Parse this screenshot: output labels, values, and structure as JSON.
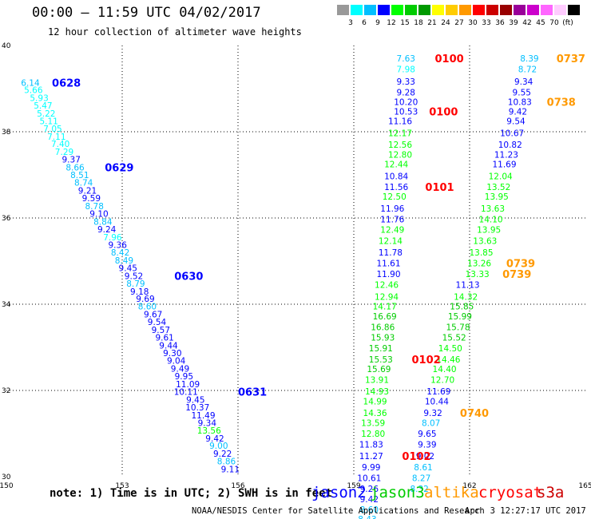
{
  "title": "00:00 — 11:59 UTC 04/02/2017",
  "subtitle": "12 hour collection of altimeter wave heights",
  "note": "note: 1) Time is in UTC; 2) SWH is in feet",
  "credit": "NOAA/NESDIS Center for Satellite Applications and Research",
  "timestamp": "Apr  3 12:27:17 UTC 2017",
  "colors": {
    "grid": "#000000"
  },
  "scale": {
    "colors": [
      "#999999",
      "#00ffff",
      "#00bfff",
      "#0000ff",
      "#00ff00",
      "#00cc00",
      "#009900",
      "#ffff00",
      "#ffcc00",
      "#ff9900",
      "#ff0000",
      "#cc0000",
      "#990000",
      "#990099",
      "#cc00cc",
      "#ff66ff",
      "#ffccff",
      "#000000"
    ],
    "labels": [
      "3",
      "6",
      "9",
      "12",
      "15",
      "18",
      "21",
      "24",
      "27",
      "30",
      "33",
      "36",
      "39",
      "42",
      "45",
      "70",
      "(ft)"
    ]
  },
  "legend": [
    {
      "name": "jason2",
      "color": "#0000ff"
    },
    {
      "name": "jason3",
      "color": "#00cc00"
    },
    {
      "name": "altika",
      "color": "#ff9900"
    },
    {
      "name": "cryosat",
      "color": "#ff0000"
    },
    {
      "name": "s3a",
      "color": "#cc0000"
    }
  ],
  "chart_data": {
    "type": "scatter",
    "xlim": [
      150,
      165
    ],
    "ylim": [
      30,
      40
    ],
    "xticks": [
      150,
      153,
      156,
      159,
      162,
      165
    ],
    "yticks": [
      30,
      32,
      34,
      36,
      38,
      40
    ],
    "grid": true,
    "points": [
      {
        "x": 150.62,
        "y": 39.14,
        "v": "6.14",
        "c": "#00bfff"
      },
      {
        "x": 150.7,
        "y": 38.97,
        "v": "5.66",
        "c": "#00ffff"
      },
      {
        "x": 150.85,
        "y": 38.79,
        "v": "5.93",
        "c": "#00ffff"
      },
      {
        "x": 150.95,
        "y": 38.61,
        "v": "5.47",
        "c": "#00ffff"
      },
      {
        "x": 151.03,
        "y": 38.43,
        "v": "5.22",
        "c": "#00ffff"
      },
      {
        "x": 151.1,
        "y": 38.25,
        "v": "5.11",
        "c": "#00ffff"
      },
      {
        "x": 151.2,
        "y": 38.07,
        "v": "7.05",
        "c": "#00ffff"
      },
      {
        "x": 151.3,
        "y": 37.89,
        "v": "7.11",
        "c": "#00ffff"
      },
      {
        "x": 151.4,
        "y": 37.72,
        "v": "7.40",
        "c": "#00ffff"
      },
      {
        "x": 151.5,
        "y": 37.54,
        "v": "7.29",
        "c": "#00ffff"
      },
      {
        "x": 151.68,
        "y": 37.36,
        "v": "9.37",
        "c": "#0000ff"
      },
      {
        "x": 151.78,
        "y": 37.18,
        "v": "8.66",
        "c": "#00bfff"
      },
      {
        "x": 151.9,
        "y": 37.0,
        "v": "8.51",
        "c": "#00bfff"
      },
      {
        "x": 152.0,
        "y": 36.82,
        "v": "8.74",
        "c": "#00bfff"
      },
      {
        "x": 152.1,
        "y": 36.64,
        "v": "9.21",
        "c": "#0000ff"
      },
      {
        "x": 152.2,
        "y": 36.46,
        "v": "9.59",
        "c": "#0000ff"
      },
      {
        "x": 152.28,
        "y": 36.28,
        "v": "8.78",
        "c": "#00bfff"
      },
      {
        "x": 152.4,
        "y": 36.1,
        "v": "9.10",
        "c": "#0000ff"
      },
      {
        "x": 152.5,
        "y": 35.92,
        "v": "8.84",
        "c": "#00bfff"
      },
      {
        "x": 152.6,
        "y": 35.74,
        "v": "9.24",
        "c": "#0000ff"
      },
      {
        "x": 152.75,
        "y": 35.56,
        "v": "7.96",
        "c": "#00ffff"
      },
      {
        "x": 152.88,
        "y": 35.38,
        "v": "9.36",
        "c": "#0000ff"
      },
      {
        "x": 152.95,
        "y": 35.2,
        "v": "8.42",
        "c": "#00bfff"
      },
      {
        "x": 153.05,
        "y": 35.02,
        "v": "8.49",
        "c": "#00bfff"
      },
      {
        "x": 153.15,
        "y": 34.84,
        "v": "9.45",
        "c": "#0000ff"
      },
      {
        "x": 153.3,
        "y": 34.66,
        "v": "9.52",
        "c": "#0000ff"
      },
      {
        "x": 153.35,
        "y": 34.48,
        "v": "8.79",
        "c": "#00bfff"
      },
      {
        "x": 153.45,
        "y": 34.3,
        "v": "9.18",
        "c": "#0000ff"
      },
      {
        "x": 153.6,
        "y": 34.13,
        "v": "9.69",
        "c": "#0000ff"
      },
      {
        "x": 153.65,
        "y": 33.95,
        "v": "8.60",
        "c": "#00bfff"
      },
      {
        "x": 153.8,
        "y": 33.77,
        "v": "9.67",
        "c": "#0000ff"
      },
      {
        "x": 153.9,
        "y": 33.59,
        "v": "9.54",
        "c": "#0000ff"
      },
      {
        "x": 154.0,
        "y": 33.41,
        "v": "9.57",
        "c": "#0000ff"
      },
      {
        "x": 154.1,
        "y": 33.23,
        "v": "9.61",
        "c": "#0000ff"
      },
      {
        "x": 154.2,
        "y": 33.05,
        "v": "9.44",
        "c": "#0000ff"
      },
      {
        "x": 154.3,
        "y": 32.87,
        "v": "9.30",
        "c": "#0000ff"
      },
      {
        "x": 154.4,
        "y": 32.69,
        "v": "9.04",
        "c": "#0000ff"
      },
      {
        "x": 154.5,
        "y": 32.51,
        "v": "9.49",
        "c": "#0000ff"
      },
      {
        "x": 154.6,
        "y": 32.33,
        "v": "9.95",
        "c": "#0000ff"
      },
      {
        "x": 154.7,
        "y": 32.15,
        "v": "11.09",
        "c": "#0000ff"
      },
      {
        "x": 154.65,
        "y": 31.97,
        "v": "10.11",
        "c": "#0000ff"
      },
      {
        "x": 154.9,
        "y": 31.79,
        "v": "9.45",
        "c": "#0000ff"
      },
      {
        "x": 154.95,
        "y": 31.61,
        "v": "10.37",
        "c": "#0000ff"
      },
      {
        "x": 155.1,
        "y": 31.43,
        "v": "11.49",
        "c": "#0000ff"
      },
      {
        "x": 155.2,
        "y": 31.25,
        "v": "9.34",
        "c": "#0000ff"
      },
      {
        "x": 155.25,
        "y": 31.07,
        "v": "13.56",
        "c": "#00ff00"
      },
      {
        "x": 155.4,
        "y": 30.89,
        "v": "9.42",
        "c": "#0000ff"
      },
      {
        "x": 155.5,
        "y": 30.72,
        "v": "9.00",
        "c": "#00bfff"
      },
      {
        "x": 155.6,
        "y": 30.54,
        "v": "9.22",
        "c": "#0000ff"
      },
      {
        "x": 155.7,
        "y": 30.36,
        "v": "8.86",
        "c": "#00bfff"
      },
      {
        "x": 155.8,
        "y": 30.18,
        "v": "9.11",
        "c": "#0000ff"
      },
      {
        "x": 160.35,
        "y": 39.7,
        "v": "7.63",
        "c": "#00bfff"
      },
      {
        "x": 160.35,
        "y": 39.45,
        "v": "7.98",
        "c": "#00ffff"
      },
      {
        "x": 160.35,
        "y": 39.17,
        "v": "9.33",
        "c": "#0000ff"
      },
      {
        "x": 160.35,
        "y": 38.92,
        "v": "9.28",
        "c": "#0000ff"
      },
      {
        "x": 160.35,
        "y": 38.69,
        "v": "10.20",
        "c": "#0000ff"
      },
      {
        "x": 160.35,
        "y": 38.47,
        "v": "10.53",
        "c": "#0000ff"
      },
      {
        "x": 160.2,
        "y": 38.25,
        "v": "11.16",
        "c": "#0000ff"
      },
      {
        "x": 160.2,
        "y": 37.97,
        "v": "12.17",
        "c": "#00ff00"
      },
      {
        "x": 160.2,
        "y": 37.7,
        "v": "12.56",
        "c": "#00ff00"
      },
      {
        "x": 160.2,
        "y": 37.47,
        "v": "12.80",
        "c": "#00ff00"
      },
      {
        "x": 160.1,
        "y": 37.25,
        "v": "12.44",
        "c": "#00ff00"
      },
      {
        "x": 160.1,
        "y": 36.97,
        "v": "10.84",
        "c": "#0000ff"
      },
      {
        "x": 160.1,
        "y": 36.72,
        "v": "11.56",
        "c": "#0000ff"
      },
      {
        "x": 160.05,
        "y": 36.5,
        "v": "12.50",
        "c": "#00ff00"
      },
      {
        "x": 160.0,
        "y": 36.22,
        "v": "11.96",
        "c": "#0000ff"
      },
      {
        "x": 160.0,
        "y": 35.97,
        "v": "11.76",
        "c": "#0000ff"
      },
      {
        "x": 160.0,
        "y": 35.73,
        "v": "12.49",
        "c": "#00ff00"
      },
      {
        "x": 159.95,
        "y": 35.47,
        "v": "12.14",
        "c": "#00ff00"
      },
      {
        "x": 159.95,
        "y": 35.2,
        "v": "11.78",
        "c": "#0000ff"
      },
      {
        "x": 159.9,
        "y": 34.95,
        "v": "11.61",
        "c": "#0000ff"
      },
      {
        "x": 159.9,
        "y": 34.7,
        "v": "11.90",
        "c": "#0000ff"
      },
      {
        "x": 159.85,
        "y": 34.45,
        "v": "12.46",
        "c": "#00ff00"
      },
      {
        "x": 159.85,
        "y": 34.18,
        "v": "12.94",
        "c": "#00ff00"
      },
      {
        "x": 159.8,
        "y": 33.95,
        "v": "14.17",
        "c": "#00ff00"
      },
      {
        "x": 159.8,
        "y": 33.72,
        "v": "16.69",
        "c": "#00cc00"
      },
      {
        "x": 159.75,
        "y": 33.47,
        "v": "16.86",
        "c": "#00cc00"
      },
      {
        "x": 159.75,
        "y": 33.23,
        "v": "15.93",
        "c": "#00cc00"
      },
      {
        "x": 159.7,
        "y": 32.98,
        "v": "15.91",
        "c": "#00cc00"
      },
      {
        "x": 159.7,
        "y": 32.72,
        "v": "15.53",
        "c": "#00cc00"
      },
      {
        "x": 159.65,
        "y": 32.5,
        "v": "15.69",
        "c": "#00cc00"
      },
      {
        "x": 159.6,
        "y": 32.25,
        "v": "13.91",
        "c": "#00ff00"
      },
      {
        "x": 159.6,
        "y": 31.98,
        "v": "14.93",
        "c": "#00ff00"
      },
      {
        "x": 159.55,
        "y": 31.75,
        "v": "14.99",
        "c": "#00ff00"
      },
      {
        "x": 159.55,
        "y": 31.48,
        "v": "14.36",
        "c": "#00ff00"
      },
      {
        "x": 159.5,
        "y": 31.25,
        "v": "13.59",
        "c": "#00ff00"
      },
      {
        "x": 159.5,
        "y": 31.0,
        "v": "12.80",
        "c": "#00ff00"
      },
      {
        "x": 159.45,
        "y": 30.75,
        "v": "11.83",
        "c": "#0000ff"
      },
      {
        "x": 159.45,
        "y": 30.48,
        "v": "11.27",
        "c": "#0000ff"
      },
      {
        "x": 159.45,
        "y": 30.22,
        "v": "9.99",
        "c": "#0000ff"
      },
      {
        "x": 159.4,
        "y": 29.97,
        "v": "10.61",
        "c": "#0000ff"
      },
      {
        "x": 159.4,
        "y": 29.72,
        "v": "9.26",
        "c": "#0000ff"
      },
      {
        "x": 159.4,
        "y": 29.48,
        "v": "9.42",
        "c": "#0000ff"
      },
      {
        "x": 159.4,
        "y": 29.24,
        "v": "8.60",
        "c": "#00bfff"
      },
      {
        "x": 159.35,
        "y": 29.02,
        "v": "8.43",
        "c": "#00bfff"
      },
      {
        "x": 163.55,
        "y": 39.7,
        "v": "8.39",
        "c": "#00bfff"
      },
      {
        "x": 163.5,
        "y": 39.45,
        "v": "8.72",
        "c": "#00bfff"
      },
      {
        "x": 163.4,
        "y": 39.17,
        "v": "9.34",
        "c": "#0000ff"
      },
      {
        "x": 163.35,
        "y": 38.92,
        "v": "9.55",
        "c": "#0000ff"
      },
      {
        "x": 163.3,
        "y": 38.69,
        "v": "10.83",
        "c": "#0000ff"
      },
      {
        "x": 163.25,
        "y": 38.47,
        "v": "9.42",
        "c": "#0000ff"
      },
      {
        "x": 163.2,
        "y": 38.25,
        "v": "9.54",
        "c": "#0000ff"
      },
      {
        "x": 163.1,
        "y": 37.97,
        "v": "10.67",
        "c": "#0000ff"
      },
      {
        "x": 163.05,
        "y": 37.7,
        "v": "10.82",
        "c": "#0000ff"
      },
      {
        "x": 162.95,
        "y": 37.47,
        "v": "11.23",
        "c": "#0000ff"
      },
      {
        "x": 162.9,
        "y": 37.25,
        "v": "11.69",
        "c": "#0000ff"
      },
      {
        "x": 162.8,
        "y": 36.97,
        "v": "12.04",
        "c": "#00ff00"
      },
      {
        "x": 162.75,
        "y": 36.72,
        "v": "13.52",
        "c": "#00ff00"
      },
      {
        "x": 162.7,
        "y": 36.5,
        "v": "13.95",
        "c": "#00ff00"
      },
      {
        "x": 162.6,
        "y": 36.22,
        "v": "13.63",
        "c": "#00ff00"
      },
      {
        "x": 162.55,
        "y": 35.97,
        "v": "14.10",
        "c": "#00ff00"
      },
      {
        "x": 162.5,
        "y": 35.73,
        "v": "13.95",
        "c": "#00ff00"
      },
      {
        "x": 162.4,
        "y": 35.47,
        "v": "13.63",
        "c": "#00ff00"
      },
      {
        "x": 162.3,
        "y": 35.2,
        "v": "13.85",
        "c": "#00ff00"
      },
      {
        "x": 162.25,
        "y": 34.95,
        "v": "13.26",
        "c": "#00ff00"
      },
      {
        "x": 162.2,
        "y": 34.7,
        "v": "13.33",
        "c": "#00ff00"
      },
      {
        "x": 161.95,
        "y": 34.45,
        "v": "11.13",
        "c": "#0000ff"
      },
      {
        "x": 161.9,
        "y": 34.18,
        "v": "14.32",
        "c": "#00ff00"
      },
      {
        "x": 161.8,
        "y": 33.95,
        "v": "15.85",
        "c": "#00cc00"
      },
      {
        "x": 161.75,
        "y": 33.72,
        "v": "15.99",
        "c": "#00cc00"
      },
      {
        "x": 161.7,
        "y": 33.47,
        "v": "15.78",
        "c": "#00cc00"
      },
      {
        "x": 161.6,
        "y": 33.23,
        "v": "15.52",
        "c": "#00cc00"
      },
      {
        "x": 161.5,
        "y": 32.98,
        "v": "14.50",
        "c": "#00ff00"
      },
      {
        "x": 161.45,
        "y": 32.72,
        "v": "14.46",
        "c": "#00ff00"
      },
      {
        "x": 161.35,
        "y": 32.5,
        "v": "14.40",
        "c": "#00ff00"
      },
      {
        "x": 161.3,
        "y": 32.25,
        "v": "12.70",
        "c": "#00ff00"
      },
      {
        "x": 161.2,
        "y": 31.98,
        "v": "11.69",
        "c": "#0000ff"
      },
      {
        "x": 161.15,
        "y": 31.75,
        "v": "10.44",
        "c": "#0000ff"
      },
      {
        "x": 161.05,
        "y": 31.48,
        "v": "9.32",
        "c": "#0000ff"
      },
      {
        "x": 161.0,
        "y": 31.25,
        "v": "8.07",
        "c": "#00bfff"
      },
      {
        "x": 160.9,
        "y": 31.0,
        "v": "9.65",
        "c": "#0000ff"
      },
      {
        "x": 160.9,
        "y": 30.75,
        "v": "9.39",
        "c": "#0000ff"
      },
      {
        "x": 160.85,
        "y": 30.48,
        "v": "9.02",
        "c": "#0000ff"
      },
      {
        "x": 160.8,
        "y": 30.22,
        "v": "8.61",
        "c": "#00bfff"
      },
      {
        "x": 160.75,
        "y": 29.97,
        "v": "8.27",
        "c": "#00bfff"
      },
      {
        "x": 160.7,
        "y": 29.72,
        "v": "8.32",
        "c": "#00bfff"
      }
    ],
    "time_labels": [
      {
        "x": 151.18,
        "y": 39.14,
        "t": "0628",
        "c": "#0000ff"
      },
      {
        "x": 152.55,
        "y": 37.18,
        "t": "0629",
        "c": "#0000ff"
      },
      {
        "x": 154.35,
        "y": 34.66,
        "t": "0630",
        "c": "#0000ff"
      },
      {
        "x": 156.0,
        "y": 31.97,
        "t": "0631",
        "c": "#0000ff"
      },
      {
        "x": 161.1,
        "y": 39.7,
        "t": "0100",
        "c": "#ff0000"
      },
      {
        "x": 160.95,
        "y": 38.47,
        "t": "0100",
        "c": "#ff0000"
      },
      {
        "x": 160.85,
        "y": 36.72,
        "t": "0101",
        "c": "#ff0000"
      },
      {
        "x": 160.5,
        "y": 32.72,
        "t": "0102",
        "c": "#ff0000"
      },
      {
        "x": 160.25,
        "y": 30.48,
        "t": "0102",
        "c": "#ff0000"
      },
      {
        "x": 164.25,
        "y": 39.7,
        "t": "0737",
        "c": "#ff9900"
      },
      {
        "x": 164.0,
        "y": 38.69,
        "t": "0738",
        "c": "#ff9900"
      },
      {
        "x": 162.95,
        "y": 34.95,
        "t": "0739",
        "c": "#ff9900"
      },
      {
        "x": 162.85,
        "y": 34.7,
        "t": "0739",
        "c": "#ff9900"
      },
      {
        "x": 161.75,
        "y": 31.48,
        "t": "0740",
        "c": "#ff9900"
      }
    ]
  }
}
